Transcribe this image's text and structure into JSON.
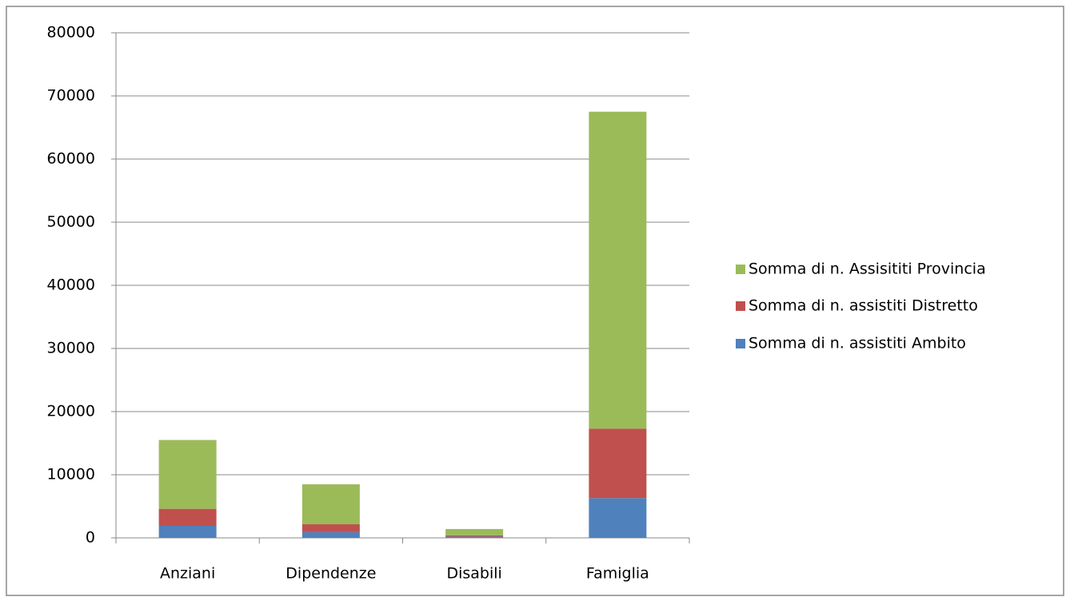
{
  "chart_data": {
    "type": "stacked_bar",
    "categories": [
      "Anziani",
      "Dipendenze",
      "Disabili",
      "Famiglia"
    ],
    "series": [
      {
        "name": "Somma di n. assistiti Ambito",
        "color": "#4f81bd",
        "values": [
          1900,
          900,
          200,
          6300
        ]
      },
      {
        "name": "Somma di n. assistiti Distretto",
        "color": "#c0504d",
        "values": [
          2700,
          1250,
          200,
          11000
        ]
      },
      {
        "name": "Somma di n. Assisititi Provincia",
        "color": "#9bbb59",
        "values": [
          10900,
          6330,
          1000,
          50200
        ]
      }
    ],
    "ylim": [
      0,
      80000
    ],
    "yticks": [
      0,
      10000,
      20000,
      30000,
      40000,
      50000,
      60000,
      70000,
      80000
    ],
    "grid": true,
    "legend": "right"
  }
}
